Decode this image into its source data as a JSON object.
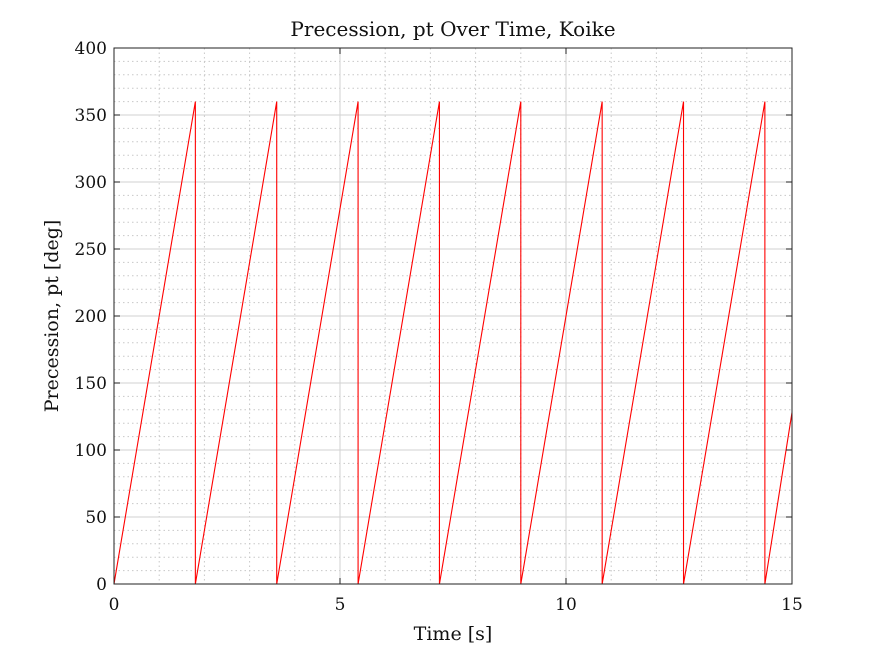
{
  "chart_data": {
    "type": "line",
    "title": "Precession, pt Over Time, Koike",
    "xlabel": "Time [s]",
    "ylabel": "Precession, pt [deg]",
    "xlim": [
      0,
      15
    ],
    "ylim": [
      0,
      400
    ],
    "xticks": [
      0,
      5,
      10,
      15
    ],
    "yticks": [
      0,
      50,
      100,
      150,
      200,
      250,
      300,
      350,
      400
    ],
    "x_minor_step": 1,
    "y_minor_step": 10,
    "grid": "major and minor",
    "legend": "none",
    "series_color": "#ff0000",
    "series": [
      {
        "x": [
          0,
          1.8,
          1.8,
          3.6,
          3.6,
          5.4,
          5.4,
          7.2,
          7.2,
          9.0,
          9.0,
          10.8,
          10.8,
          12.6,
          12.6,
          14.4,
          14.4,
          15
        ],
        "y": [
          0,
          360,
          0,
          360,
          0,
          360,
          0,
          360,
          0,
          360,
          0,
          360,
          0,
          360,
          0,
          360,
          0,
          128
        ]
      }
    ]
  }
}
